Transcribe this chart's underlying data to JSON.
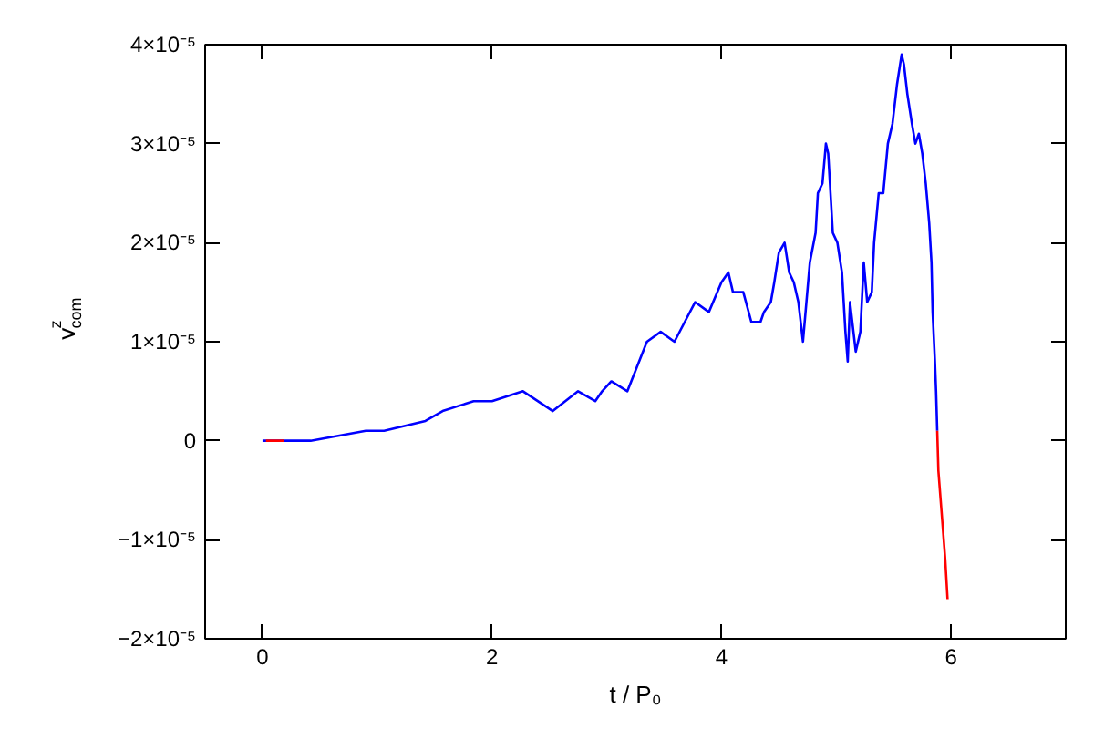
{
  "chart_data": {
    "type": "line",
    "xlabel": "t / P₀",
    "ylabel": "v$^{z}$$_{com}$",
    "xlim": [
      -0.5,
      7
    ],
    "ylim": [
      -2e-05,
      4e-05
    ],
    "xticks": [
      0,
      2,
      4,
      6
    ],
    "yticks": [
      {
        "value": -2e-05,
        "label": "−2×10⁻⁵"
      },
      {
        "value": -1e-05,
        "label": "−1×10⁻⁵"
      },
      {
        "value": 0,
        "label": "0"
      },
      {
        "value": 1e-05,
        "label": "1×10⁻⁵"
      },
      {
        "value": 2e-05,
        "label": "2×10⁻⁵"
      },
      {
        "value": 3e-05,
        "label": "3×10⁻⁵"
      },
      {
        "value": 4e-05,
        "label": "4×10⁻⁵"
      }
    ],
    "grid": false,
    "series": [
      {
        "color": "#0000ff",
        "x": [
          0,
          0.19,
          0.42,
          0.9,
          1.06,
          1.42,
          1.57,
          1.84,
          2.0,
          2.27,
          2.53,
          2.75,
          2.9,
          2.96,
          3.04,
          3.18,
          3.35,
          3.47,
          3.59,
          3.68,
          3.77,
          3.89,
          4.0,
          4.06,
          4.1,
          4.19,
          4.26,
          4.34,
          4.37,
          4.43,
          4.46,
          4.5,
          4.55,
          4.59,
          4.63,
          4.67,
          4.71,
          4.74,
          4.77,
          4.82,
          4.84,
          4.88,
          4.91,
          4.93,
          4.95,
          4.97,
          5.01,
          5.05,
          5.08,
          5.1,
          5.12,
          5.15,
          5.17,
          5.21,
          5.24,
          5.27,
          5.31,
          5.33,
          5.37,
          5.41,
          5.45,
          5.49,
          5.53,
          5.57,
          5.59,
          5.62,
          5.66,
          5.69,
          5.72,
          5.75,
          5.78,
          5.81,
          5.83,
          5.84,
          5.86,
          5.87,
          5.88
        ],
        "values": [
          0,
          0,
          0,
          1e-06,
          1e-06,
          2e-06,
          3e-06,
          4e-06,
          4e-06,
          5e-06,
          3e-06,
          5e-06,
          4e-06,
          5e-06,
          6e-06,
          5e-06,
          1e-05,
          1.1e-05,
          1e-05,
          1.2e-05,
          1.4e-05,
          1.3e-05,
          1.6e-05,
          1.7e-05,
          1.5e-05,
          1.5e-05,
          1.2e-05,
          1.2e-05,
          1.3e-05,
          1.4e-05,
          1.6e-05,
          1.9e-05,
          2e-05,
          1.7e-05,
          1.6e-05,
          1.4e-05,
          1e-05,
          1.4e-05,
          1.8e-05,
          2.1e-05,
          2.5e-05,
          2.6e-05,
          3e-05,
          2.9e-05,
          2.5e-05,
          2.1e-05,
          2e-05,
          1.7e-05,
          1.1e-05,
          8e-06,
          1.4e-05,
          1.1e-05,
          9e-06,
          1.1e-05,
          1.8e-05,
          1.4e-05,
          1.5e-05,
          2e-05,
          2.5e-05,
          2.5e-05,
          3e-05,
          3.2e-05,
          3.6e-05,
          3.9e-05,
          3.8e-05,
          3.5e-05,
          3.2e-05,
          3e-05,
          3.1e-05,
          2.9e-05,
          2.6e-05,
          2.2e-05,
          1.8e-05,
          1.3e-05,
          8e-06,
          5e-06,
          1e-06
        ]
      },
      {
        "color": "#ff0000",
        "x": [
          0.03,
          0.19,
          3.0,
          5.88,
          5.89,
          5.91,
          5.93,
          5.95,
          5.97
        ],
        "values": [
          0,
          0,
          null,
          1e-06,
          -3e-06,
          -6e-06,
          -9e-06,
          -1.2e-05,
          -1.6e-05
        ]
      }
    ]
  }
}
